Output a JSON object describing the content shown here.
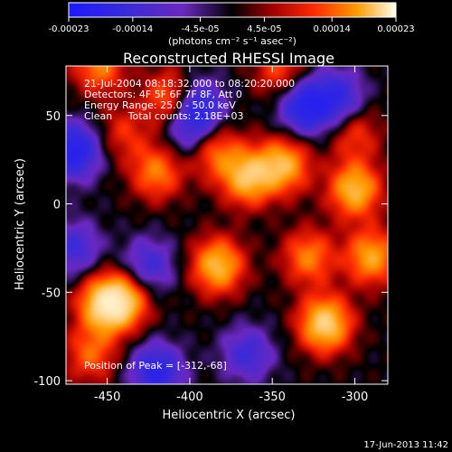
{
  "chart_data": {
    "type": "heatmap",
    "title": "Reconstructed RHESSI Image",
    "xlabel": "Heliocentric X (arcsec)",
    "ylabel": "Heliocentric Y (arcsec)",
    "xlim": [
      -475,
      -280
    ],
    "ylim": [
      -102,
      78
    ],
    "x_ticks": [
      -450,
      -400,
      -350,
      -300
    ],
    "x_tick_labels": [
      "-450",
      "-400",
      "-350",
      "-300"
    ],
    "y_ticks": [
      -100,
      -50,
      0,
      50
    ],
    "y_tick_labels": [
      "-100",
      "-50",
      "0",
      "50"
    ],
    "colorbar": {
      "range": [
        -0.00023,
        0.00023
      ],
      "ticks": [
        -0.00023,
        -0.00014,
        -4.5e-05,
        4.5e-05,
        0.00014,
        0.00023
      ],
      "tick_labels": [
        "-0.00023",
        "-0.00014",
        "-4.5e-05",
        "4.5e-05",
        "0.00014",
        "0.00023"
      ],
      "unit_label": "(photons cm⁻² s⁻¹ asec⁻²)"
    },
    "annotations": [
      "21-Jul-2004 08:18:32.000 to 08:20:20.000",
      "Detectors: 4F 5F 6F 7F 8F, Att 0",
      "Energy Range: 25.0 - 50.0 keV",
      "Clean     Total counts: 2.18E+03"
    ],
    "peak_annotation": "Position of Peak = [-312,-68]",
    "peak": [
      -312,
      -68
    ],
    "sources": [
      {
        "x": -318,
        "y": -68,
        "value": 1.0
      },
      {
        "x": -452,
        "y": -57,
        "value": 0.9
      },
      {
        "x": -440,
        "y": -55,
        "value": 0.75
      },
      {
        "x": -383,
        "y": -35,
        "value": 0.85
      },
      {
        "x": -365,
        "y": 15,
        "value": 0.85
      },
      {
        "x": -343,
        "y": 22,
        "value": 0.8
      },
      {
        "x": -300,
        "y": 8,
        "value": 0.85
      },
      {
        "x": -290,
        "y": -30,
        "value": 0.75
      },
      {
        "x": -420,
        "y": 18,
        "value": 0.6
      },
      {
        "x": -385,
        "y": 30,
        "value": 0.55
      },
      {
        "x": -455,
        "y": 78,
        "value": 0.6
      },
      {
        "x": -412,
        "y": 60,
        "value": 0.6
      },
      {
        "x": -328,
        "y": -30,
        "value": 0.6
      },
      {
        "x": -460,
        "y": -85,
        "value": 0.5
      },
      {
        "x": -345,
        "y": 75,
        "value": 0.45
      },
      {
        "x": -300,
        "y": 40,
        "value": 0.4
      },
      {
        "x": -440,
        "y": 40,
        "value": 0.35
      },
      {
        "x": -470,
        "y": 30,
        "value": -0.85
      },
      {
        "x": -395,
        "y": 55,
        "value": -0.7
      },
      {
        "x": -330,
        "y": 55,
        "value": -0.8
      },
      {
        "x": -310,
        "y": 60,
        "value": -0.6
      },
      {
        "x": -420,
        "y": -95,
        "value": -0.75
      },
      {
        "x": -365,
        "y": -85,
        "value": -0.5
      },
      {
        "x": -470,
        "y": -25,
        "value": -0.5
      },
      {
        "x": -425,
        "y": -35,
        "value": -0.5
      },
      {
        "x": -400,
        "y": 40,
        "value": -0.4
      }
    ]
  },
  "timestamp": "17-Jun-2013 11:42"
}
